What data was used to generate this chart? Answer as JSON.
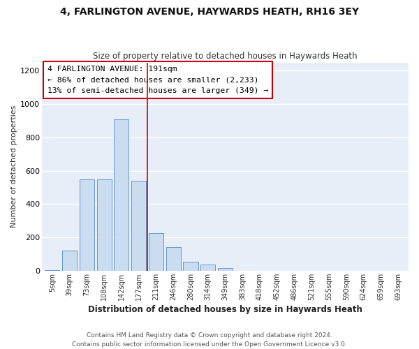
{
  "title": "4, FARLINGTON AVENUE, HAYWARDS HEATH, RH16 3EY",
  "subtitle": "Size of property relative to detached houses in Haywards Heath",
  "xlabel": "Distribution of detached houses by size in Haywards Heath",
  "ylabel": "Number of detached properties",
  "bar_color": "#c9dcf0",
  "bar_edge_color": "#6699cc",
  "ax_bg_color": "#e8eef8",
  "fig_bg_color": "#ffffff",
  "grid_color": "#ffffff",
  "categories": [
    "5sqm",
    "39sqm",
    "73sqm",
    "108sqm",
    "142sqm",
    "177sqm",
    "211sqm",
    "246sqm",
    "280sqm",
    "314sqm",
    "349sqm",
    "383sqm",
    "418sqm",
    "452sqm",
    "486sqm",
    "521sqm",
    "555sqm",
    "590sqm",
    "624sqm",
    "659sqm",
    "693sqm"
  ],
  "values": [
    5,
    120,
    550,
    550,
    910,
    540,
    225,
    140,
    55,
    35,
    15,
    0,
    0,
    0,
    0,
    0,
    0,
    0,
    0,
    0,
    0
  ],
  "ylim": [
    0,
    1250
  ],
  "yticks": [
    0,
    200,
    400,
    600,
    800,
    1000,
    1200
  ],
  "annotation_line1": "4 FARLINGTON AVENUE: 191sqm",
  "annotation_line2": "← 86% of detached houses are smaller (2,233)",
  "annotation_line3": "13% of semi-detached houses are larger (349) →",
  "vline_color": "#cc0000",
  "vline_xidx": 5.5,
  "footnote_line1": "Contains HM Land Registry data © Crown copyright and database right 2024.",
  "footnote_line2": "Contains public sector information licensed under the Open Government Licence v3.0."
}
